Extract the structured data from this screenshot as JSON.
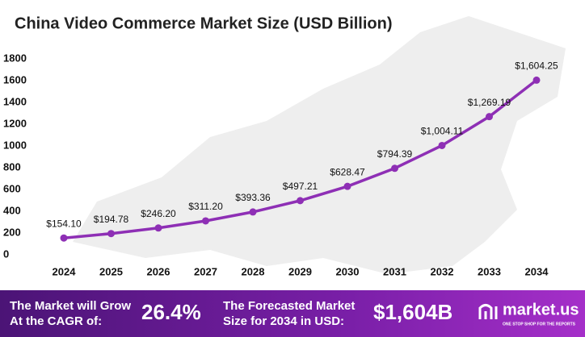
{
  "chart_data": {
    "type": "line",
    "title": "China Video Commerce Market Size (USD Billion)",
    "categories": [
      "2024",
      "2025",
      "2026",
      "2027",
      "2028",
      "2029",
      "2030",
      "2031",
      "2032",
      "2033",
      "2034"
    ],
    "values": [
      154.1,
      194.78,
      246.2,
      311.2,
      393.36,
      497.21,
      628.47,
      794.39,
      1004.11,
      1269.19,
      1604.25
    ],
    "value_labels": [
      "$154.10",
      "$194.78",
      "$246.20",
      "$311.20",
      "$393.36",
      "$497.21",
      "$628.47",
      "$794.39",
      "$1,004.11",
      "$1,269.19",
      "$1,604.25"
    ],
    "color": "#8e2fb5",
    "ylim": [
      0,
      1800
    ],
    "yticks": [
      0,
      200,
      400,
      600,
      800,
      1000,
      1200,
      1400,
      1600,
      1800
    ],
    "grid": false
  },
  "footer": {
    "cagr_text": [
      "The Market will Grow",
      "At the CAGR of:"
    ],
    "cagr": "26.4%",
    "forecast_text": [
      "The Forecasted Market",
      "Size for 2034 in USD:"
    ],
    "forecast": "$1,604B",
    "brand": "market.us",
    "tagline": "ONE STOP SHOP FOR THE REPORTS"
  }
}
